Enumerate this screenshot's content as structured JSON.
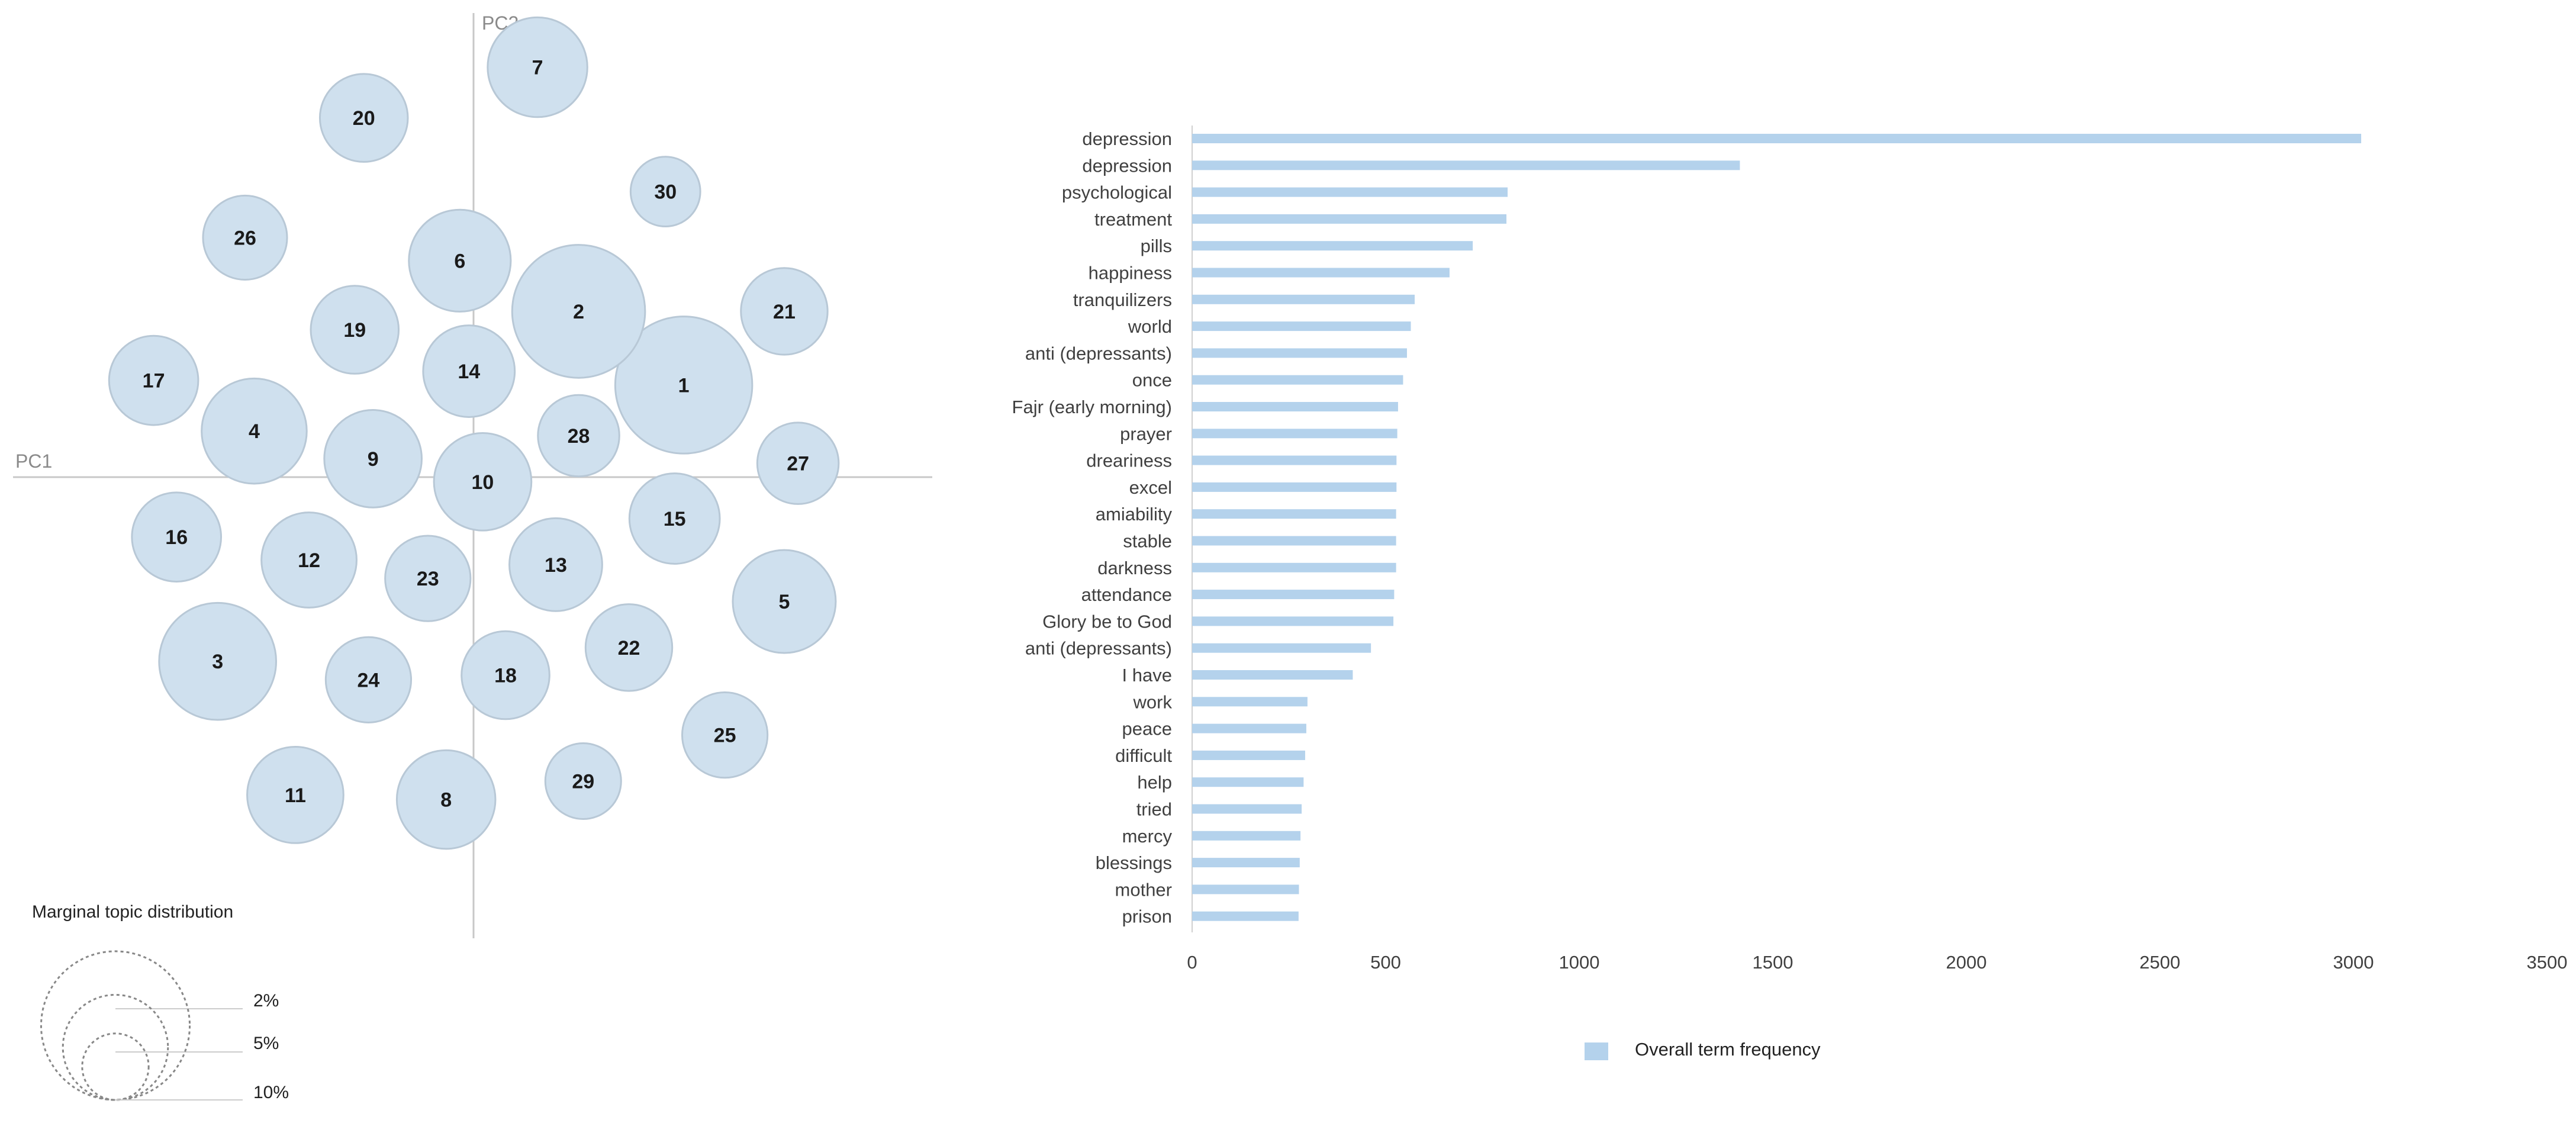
{
  "chart_data": [
    {
      "type": "scatter",
      "subtype": "intertopic-distance-map",
      "xlabel": "PC1",
      "ylabel": "PC2",
      "grid": false,
      "topics": [
        {
          "id": "1",
          "pc1": 0.46,
          "pc2": 0.2,
          "share": 0.085
        },
        {
          "id": "2",
          "pc1": 0.23,
          "pc2": 0.36,
          "share": 0.08
        },
        {
          "id": "3",
          "pc1": -0.56,
          "pc2": -0.4,
          "share": 0.062
        },
        {
          "id": "4",
          "pc1": -0.48,
          "pc2": 0.1,
          "share": 0.05
        },
        {
          "id": "5",
          "pc1": 0.68,
          "pc2": -0.27,
          "share": 0.048
        },
        {
          "id": "6",
          "pc1": -0.03,
          "pc2": 0.47,
          "share": 0.047
        },
        {
          "id": "7",
          "pc1": 0.14,
          "pc2": 0.89,
          "share": 0.045
        },
        {
          "id": "8",
          "pc1": -0.06,
          "pc2": -0.7,
          "share": 0.044
        },
        {
          "id": "9",
          "pc1": -0.22,
          "pc2": 0.04,
          "share": 0.043
        },
        {
          "id": "10",
          "pc1": 0.02,
          "pc2": -0.01,
          "share": 0.043
        },
        {
          "id": "11",
          "pc1": -0.39,
          "pc2": -0.69,
          "share": 0.042
        },
        {
          "id": "12",
          "pc1": -0.36,
          "pc2": -0.18,
          "share": 0.041
        },
        {
          "id": "13",
          "pc1": 0.18,
          "pc2": -0.19,
          "share": 0.039
        },
        {
          "id": "14",
          "pc1": -0.01,
          "pc2": 0.23,
          "share": 0.038
        },
        {
          "id": "15",
          "pc1": 0.44,
          "pc2": -0.09,
          "share": 0.037
        },
        {
          "id": "16",
          "pc1": -0.65,
          "pc2": -0.13,
          "share": 0.036
        },
        {
          "id": "17",
          "pc1": -0.7,
          "pc2": 0.21,
          "share": 0.036
        },
        {
          "id": "18",
          "pc1": 0.07,
          "pc2": -0.43,
          "share": 0.035
        },
        {
          "id": "19",
          "pc1": -0.26,
          "pc2": 0.32,
          "share": 0.035
        },
        {
          "id": "20",
          "pc1": -0.24,
          "pc2": 0.78,
          "share": 0.035
        },
        {
          "id": "21",
          "pc1": 0.68,
          "pc2": 0.36,
          "share": 0.034
        },
        {
          "id": "22",
          "pc1": 0.34,
          "pc2": -0.37,
          "share": 0.034
        },
        {
          "id": "23",
          "pc1": -0.1,
          "pc2": -0.22,
          "share": 0.033
        },
        {
          "id": "24",
          "pc1": -0.23,
          "pc2": -0.44,
          "share": 0.033
        },
        {
          "id": "25",
          "pc1": 0.55,
          "pc2": -0.56,
          "share": 0.033
        },
        {
          "id": "26",
          "pc1": -0.5,
          "pc2": 0.52,
          "share": 0.032
        },
        {
          "id": "27",
          "pc1": 0.71,
          "pc2": 0.03,
          "share": 0.03
        },
        {
          "id": "28",
          "pc1": 0.23,
          "pc2": 0.09,
          "share": 0.03
        },
        {
          "id": "29",
          "pc1": 0.24,
          "pc2": -0.66,
          "share": 0.026
        },
        {
          "id": "30",
          "pc1": 0.42,
          "pc2": 0.62,
          "share": 0.022
        }
      ],
      "size_legend": {
        "title": "Marginal topic distribution",
        "levels": [
          {
            "label": "2%",
            "share": 0.02
          },
          {
            "label": "5%",
            "share": 0.05
          },
          {
            "label": "10%",
            "share": 0.1
          }
        ]
      }
    },
    {
      "type": "bar",
      "orientation": "horizontal",
      "categories": [
        "depression",
        "depression",
        "psychological",
        "treatment",
        "pills",
        "happiness",
        "tranquilizers",
        "world",
        "anti (depressants)",
        "once",
        "Fajr (early morning)",
        "prayer",
        "dreariness",
        "excel",
        "amiability",
        "stable",
        "darkness",
        "attendance",
        "Glory be to God",
        "anti (depressants)",
        "I have",
        "work",
        "peace",
        "difficult",
        "help",
        "tried",
        "mercy",
        "blessings",
        "mother",
        "prison"
      ],
      "series": [
        {
          "name": "Overall term frequency",
          "values": [
            3020,
            1415,
            815,
            812,
            725,
            665,
            575,
            565,
            555,
            545,
            532,
            530,
            528,
            528,
            527,
            527,
            527,
            522,
            520,
            462,
            415,
            298,
            295,
            292,
            288,
            283,
            280,
            278,
            276,
            275
          ]
        }
      ],
      "xlim": [
        0,
        3500
      ],
      "xticks": [
        0,
        500,
        1000,
        1500,
        2000,
        2500,
        3000,
        3500
      ],
      "legend_position": "bottom",
      "grid": false
    }
  ],
  "colors": {
    "bubble_fill": "#cfe0ee",
    "bubble_stroke": "#b8c8d6",
    "axis_line": "#c8c8c8",
    "bar": "#b4d2ec",
    "label_text": "#404040",
    "legend_stroke": "#888888"
  }
}
